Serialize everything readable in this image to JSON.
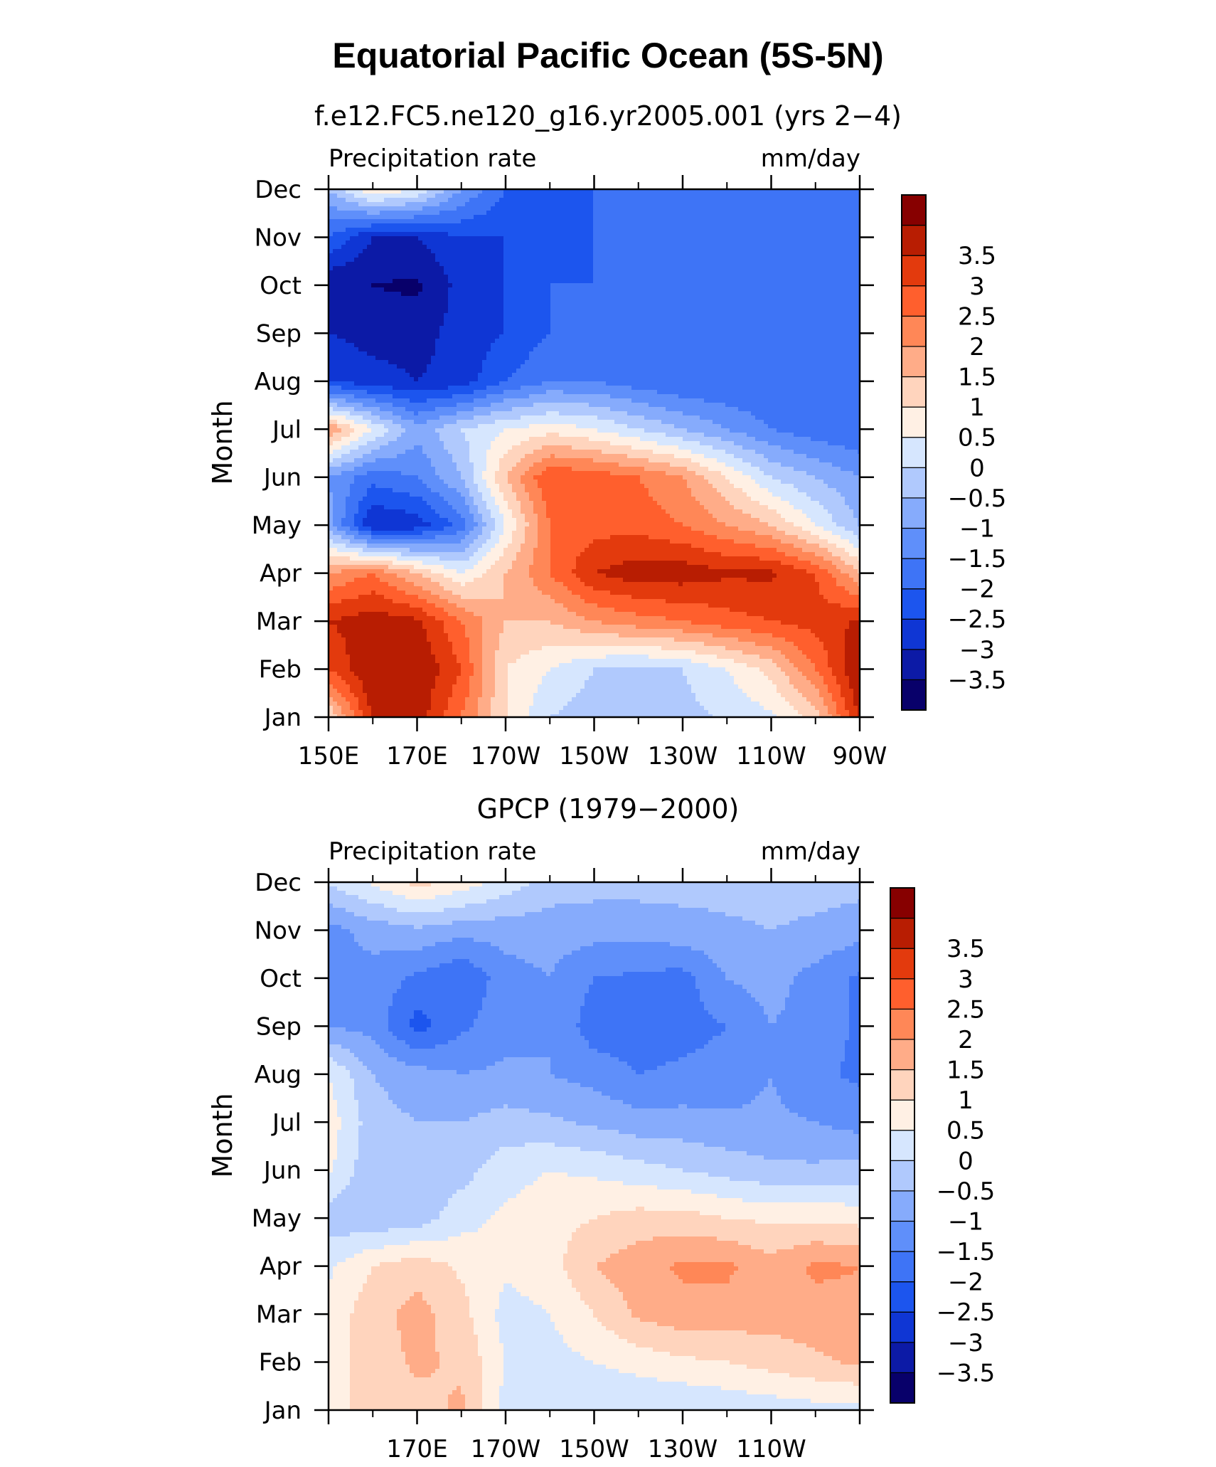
{
  "figure": {
    "title": "Equatorial Pacific Ocean (5S-5N)"
  },
  "colorbar": {
    "colors": [
      "#08006a",
      "#0c1aa6",
      "#0f36d4",
      "#1c55ee",
      "#3e74f6",
      "#5f8ffa",
      "#86abfc",
      "#b0c9fd",
      "#d6e6fe",
      "#fff0e4",
      "#ffd4bd",
      "#ffac88",
      "#ff8757",
      "#ff5f2d",
      "#e33a0d",
      "#b81d02",
      "#870000"
    ],
    "labels": [
      "−3.5",
      "−3",
      "−2.5",
      "−2",
      "−1.5",
      "−1",
      "−0.5",
      "0",
      "0.5",
      "1",
      "1.5",
      "2",
      "2.5",
      "3",
      "3.5"
    ]
  },
  "chart_data": [
    {
      "type": "heatmap",
      "title": "f.e12.FC5.ne120_g16.yr2005.001 (yrs 2−4)",
      "left_label": "Precipitation rate",
      "right_label": "mm/day",
      "ylabel": "Month",
      "x_tick_labels": [
        {
          "lon": 150,
          "label": "150E"
        },
        {
          "lon": 170,
          "label": "170E"
        },
        {
          "lon": 190,
          "label": "170W"
        },
        {
          "lon": 210,
          "label": "150W"
        },
        {
          "lon": 230,
          "label": "130W"
        },
        {
          "lon": 250,
          "label": "110W"
        },
        {
          "lon": 270,
          "label": "90W"
        }
      ],
      "y_tick_labels": [
        "Jan",
        "Feb",
        "Mar",
        "Apr",
        "May",
        "Jun",
        "Jul",
        "Aug",
        "Sep",
        "Oct",
        "Nov",
        "Dec"
      ],
      "xlim": [
        150,
        270
      ],
      "x": [
        150,
        160,
        170,
        180,
        190,
        200,
        210,
        220,
        230,
        240,
        250,
        260,
        270
      ],
      "z": [
        [
          1.0,
          3.6,
          3.8,
          2.5,
          1.0,
          0.0,
          -0.3,
          -0.4,
          -0.2,
          0.1,
          0.4,
          1.2,
          3.6
        ],
        [
          3.0,
          4.0,
          4.0,
          3.0,
          1.0,
          0.5,
          0.0,
          -0.2,
          0.0,
          0.5,
          1.2,
          2.5,
          4.0
        ],
        [
          3.5,
          3.8,
          3.6,
          2.5,
          1.5,
          1.5,
          2.0,
          2.3,
          2.5,
          2.8,
          3.0,
          3.2,
          3.6
        ],
        [
          2.0,
          2.5,
          1.5,
          0.5,
          1.5,
          2.5,
          3.5,
          3.8,
          3.8,
          3.6,
          3.6,
          3.0,
          1.5
        ],
        [
          -0.8,
          -3.0,
          -2.8,
          -1.8,
          0.5,
          2.5,
          2.8,
          2.8,
          2.5,
          2.0,
          1.5,
          0.5,
          -0.5
        ],
        [
          -1.0,
          -1.8,
          -1.5,
          -0.5,
          1.5,
          3.0,
          2.8,
          2.5,
          2.0,
          1.0,
          0.0,
          -0.5,
          -1.0
        ],
        [
          2.0,
          0.5,
          -0.8,
          0.0,
          0.5,
          0.8,
          0.5,
          0.0,
          -0.5,
          -1.0,
          -1.5,
          -1.8,
          -2.0
        ],
        [
          -2.5,
          -2.8,
          -3.0,
          -2.8,
          -2.0,
          -1.5,
          -1.5,
          -1.8,
          -2.0,
          -2.0,
          -2.0,
          -2.0,
          -2.0
        ],
        [
          -3.0,
          -3.2,
          -3.2,
          -2.8,
          -2.5,
          -2.0,
          -2.0,
          -2.0,
          -2.0,
          -2.0,
          -2.0,
          -2.0,
          -2.0
        ],
        [
          -3.5,
          -3.5,
          -3.6,
          -2.8,
          -2.5,
          -2.0,
          -2.0,
          -2.0,
          -2.0,
          -2.0,
          -2.0,
          -2.0,
          -2.0
        ],
        [
          -2.0,
          -3.0,
          -3.0,
          -2.5,
          -2.5,
          -2.5,
          -2.0,
          -2.0,
          -2.0,
          -2.0,
          -2.0,
          -2.0,
          -2.0
        ],
        [
          -0.5,
          1.0,
          0.5,
          -1.0,
          -2.0,
          -2.0,
          -2.0,
          -2.0,
          -2.0,
          -2.0,
          -2.0,
          -2.0,
          -2.0
        ]
      ]
    },
    {
      "type": "heatmap",
      "title": "GPCP (1979−2000)",
      "left_label": "Precipitation rate",
      "right_label": "mm/day",
      "ylabel": "Month",
      "x_tick_labels": [
        {
          "lon": 170,
          "label": "170E"
        },
        {
          "lon": 190,
          "label": "170W"
        },
        {
          "lon": 210,
          "label": "150W"
        },
        {
          "lon": 230,
          "label": "130W"
        },
        {
          "lon": 250,
          "label": "110W"
        }
      ],
      "y_tick_labels": [
        "Jan",
        "Feb",
        "Mar",
        "Apr",
        "May",
        "Jun",
        "Jul",
        "Aug",
        "Sep",
        "Oct",
        "Nov",
        "Dec"
      ],
      "xlim": [
        150,
        270
      ],
      "x": [
        150,
        160,
        170,
        180,
        190,
        200,
        210,
        220,
        230,
        240,
        250,
        260,
        270
      ],
      "z": [
        [
          0.8,
          1.2,
          1.3,
          1.6,
          0.3,
          0.1,
          0.0,
          0.0,
          0.0,
          0.1,
          0.2,
          0.3,
          0.3
        ],
        [
          0.8,
          1.2,
          1.6,
          1.4,
          0.5,
          0.3,
          0.5,
          0.7,
          0.9,
          1.0,
          1.2,
          1.4,
          1.6
        ],
        [
          0.7,
          1.3,
          1.7,
          1.2,
          0.3,
          0.5,
          1.0,
          1.6,
          1.8,
          1.8,
          1.7,
          1.8,
          1.9
        ],
        [
          0.4,
          1.0,
          1.3,
          0.9,
          0.6,
          0.8,
          1.5,
          1.8,
          2.1,
          2.1,
          1.7,
          2.1,
          2.0
        ],
        [
          -0.3,
          -0.4,
          -0.3,
          0.3,
          0.6,
          0.8,
          1.0,
          1.2,
          1.2,
          1.0,
          0.9,
          0.9,
          0.8
        ],
        [
          0.6,
          -0.4,
          -0.3,
          -0.2,
          0.3,
          0.5,
          0.4,
          0.2,
          0.0,
          -0.2,
          -0.4,
          -0.4,
          -0.3
        ],
        [
          0.8,
          -0.3,
          -0.5,
          -0.5,
          -0.3,
          -0.4,
          -0.6,
          -0.8,
          -0.8,
          -0.9,
          -0.9,
          -1.0,
          -1.2
        ],
        [
          0.5,
          -0.5,
          -0.8,
          -1.0,
          -0.9,
          -1.0,
          -1.2,
          -1.5,
          -1.4,
          -1.3,
          -1.0,
          -1.4,
          -1.6
        ],
        [
          -1.0,
          -1.2,
          -2.2,
          -1.6,
          -1.2,
          -1.0,
          -1.8,
          -1.8,
          -1.7,
          -1.5,
          -1.0,
          -1.2,
          -1.6
        ],
        [
          -1.2,
          -1.2,
          -1.6,
          -2.0,
          -1.2,
          -1.0,
          -1.5,
          -1.6,
          -1.7,
          -1.0,
          -0.8,
          -1.2,
          -1.6
        ],
        [
          -1.2,
          -0.8,
          -0.6,
          -0.8,
          -0.8,
          -0.8,
          -0.8,
          -0.8,
          -0.7,
          -0.6,
          -0.5,
          -0.6,
          -0.8
        ],
        [
          0.1,
          0.6,
          1.2,
          0.8,
          0.3,
          -0.2,
          -0.3,
          -0.3,
          -0.3,
          -0.3,
          -0.3,
          -0.3,
          -0.3
        ]
      ]
    }
  ]
}
